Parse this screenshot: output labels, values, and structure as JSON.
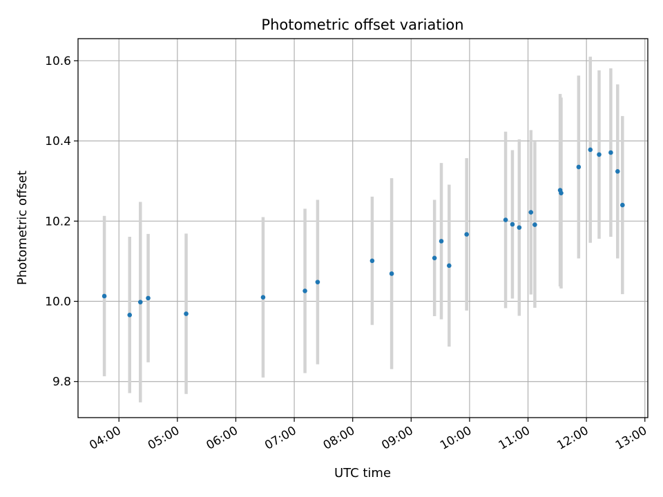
{
  "chart_data": {
    "type": "scatter",
    "title": "Photometric offset variation",
    "xlabel": "UTC time",
    "ylabel": "Photometric offset",
    "xlim": [
      "03:18",
      "13:03"
    ],
    "ylim": [
      9.71,
      10.655
    ],
    "x_ticks": [
      "04:00",
      "05:00",
      "06:00",
      "07:00",
      "08:00",
      "09:00",
      "10:00",
      "11:00",
      "12:00",
      "13:00"
    ],
    "y_ticks": [
      9.8,
      10.0,
      10.2,
      10.4,
      10.6
    ],
    "grid": true,
    "colors": {
      "points": "#1f77b4",
      "errorbars": "#d3d3d3",
      "grid": "#b0b0b0"
    },
    "series": [
      {
        "points": [
          {
            "x": "03:45",
            "y": 10.013,
            "err": 0.2
          },
          {
            "x": "04:11",
            "y": 9.966,
            "err": 0.195
          },
          {
            "x": "04:22",
            "y": 9.998,
            "err": 0.25
          },
          {
            "x": "04:30",
            "y": 10.008,
            "err": 0.16
          },
          {
            "x": "05:09",
            "y": 9.969,
            "err": 0.2
          },
          {
            "x": "06:28",
            "y": 10.01,
            "err": 0.2
          },
          {
            "x": "07:11",
            "y": 10.026,
            "err": 0.205
          },
          {
            "x": "07:24",
            "y": 10.048,
            "err": 0.205
          },
          {
            "x": "08:20",
            "y": 10.101,
            "err": 0.16
          },
          {
            "x": "08:40",
            "y": 10.069,
            "err": 0.238
          },
          {
            "x": "09:24",
            "y": 10.108,
            "err": 0.145
          },
          {
            "x": "09:31",
            "y": 10.15,
            "err": 0.195
          },
          {
            "x": "09:39",
            "y": 10.089,
            "err": 0.202
          },
          {
            "x": "09:57",
            "y": 10.167,
            "err": 0.19
          },
          {
            "x": "10:37",
            "y": 10.203,
            "err": 0.22
          },
          {
            "x": "10:44",
            "y": 10.192,
            "err": 0.185
          },
          {
            "x": "10:51",
            "y": 10.184,
            "err": 0.22
          },
          {
            "x": "11:03",
            "y": 10.222,
            "err": 0.205
          },
          {
            "x": "11:07",
            "y": 10.191,
            "err": 0.207
          },
          {
            "x": "11:33",
            "y": 10.277,
            "err": 0.24
          },
          {
            "x": "11:34",
            "y": 10.27,
            "err": 0.238
          },
          {
            "x": "11:52",
            "y": 10.335,
            "err": 0.228
          },
          {
            "x": "12:04",
            "y": 10.378,
            "err": 0.232
          },
          {
            "x": "12:13",
            "y": 10.366,
            "err": 0.21
          },
          {
            "x": "12:25",
            "y": 10.371,
            "err": 0.21
          },
          {
            "x": "12:32",
            "y": 10.324,
            "err": 0.217
          },
          {
            "x": "12:37",
            "y": 10.24,
            "err": 0.222
          }
        ]
      }
    ]
  }
}
